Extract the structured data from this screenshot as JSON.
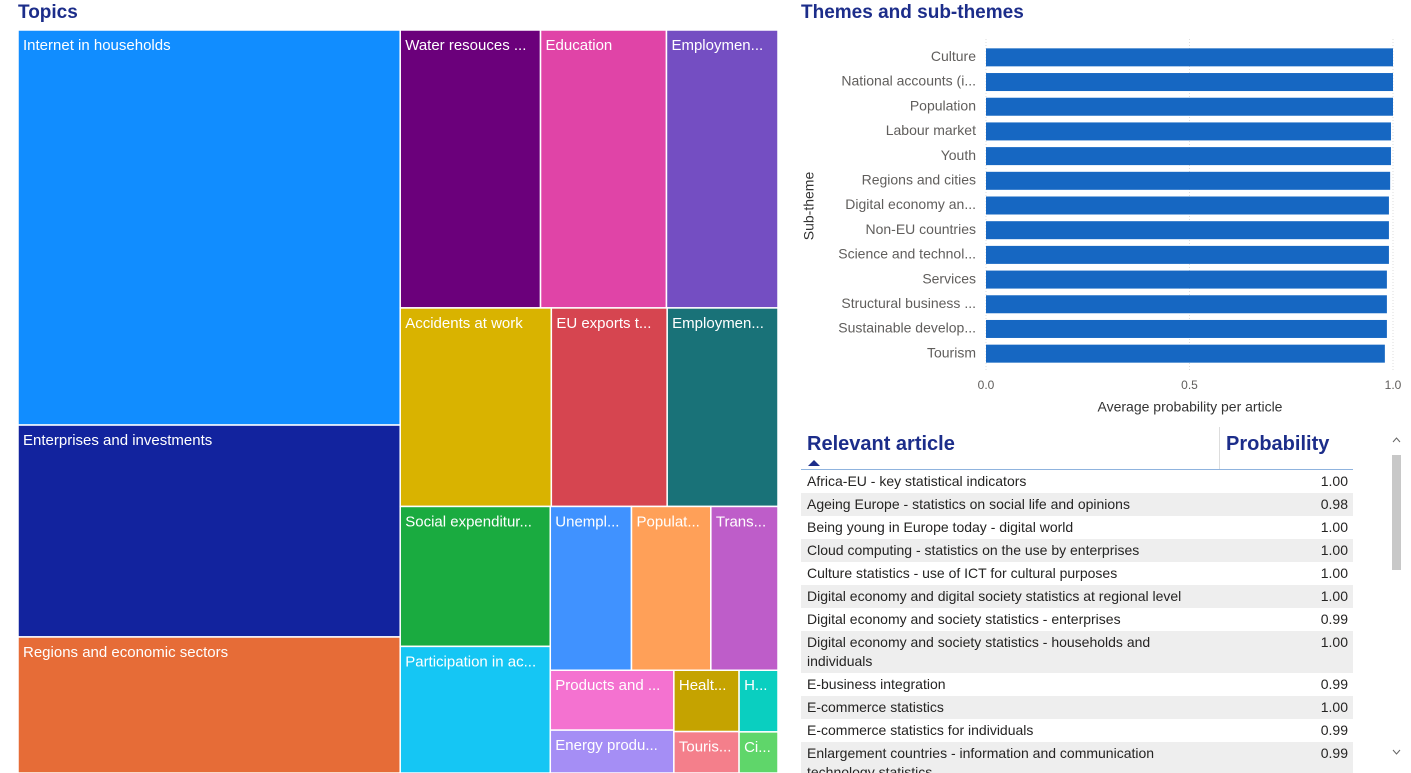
{
  "chart_data": [
    {
      "type": "treemap",
      "title": "Topics",
      "categories": [
        "Internet in households",
        "Enterprises and investments",
        "Regions and economic sectors",
        "Water resouces ...",
        "Education",
        "Employmen...",
        "Accidents at work",
        "EU exports t...",
        "Employmen...",
        "Social expenditur...",
        "Participation in ac...",
        "Unempl...",
        "Populat...",
        "Trans...",
        "Products and ...",
        "Energy produ...",
        "Healt...",
        "Touris...",
        "H...",
        "Ci..."
      ],
      "values": [
        151,
        81,
        52,
        39,
        35,
        31,
        30,
        23,
        22,
        21,
        19,
        13.3,
        13,
        11,
        7.4,
        5.3,
        4,
        2.7,
        2.4,
        1.6
      ],
      "colors": [
        "#118DFF",
        "#12239E",
        "#E66C37",
        "#6B007B",
        "#E044A7",
        "#744EC2",
        "#D9B300",
        "#D64550",
        "#197278",
        "#1AAB40",
        "#15C6F4",
        "#4092FF",
        "#FFA058",
        "#BE5DC9",
        "#F472D0",
        "#A58EF5",
        "#C5A300",
        "#F47F8B",
        "#0ACFC0",
        "#5FD66A"
      ]
    },
    {
      "type": "bar",
      "title": "Themes and sub-themes",
      "xlabel": "Average probability per article",
      "ylabel": "Sub-theme",
      "categories": [
        "Culture",
        "National accounts (i...",
        "Population",
        "Labour market",
        "Youth",
        "Regions and cities",
        "Digital economy an...",
        "Non-EU countries",
        "Science and technol...",
        "Services",
        "Structural business ...",
        "Sustainable develop...",
        "Tourism"
      ],
      "values": [
        1.0,
        1.0,
        1.0,
        0.995,
        0.995,
        0.993,
        0.99,
        0.99,
        0.99,
        0.985,
        0.985,
        0.985,
        0.98
      ],
      "color": "#1667C2",
      "xlim": [
        0,
        1
      ],
      "xticks": [
        {
          "value": 0,
          "label": "0.0"
        },
        0.5,
        {
          "value": 1,
          "label": "1.0"
        }
      ],
      "grid": true
    }
  ],
  "table": {
    "columns": [
      "Relevant article",
      "Probability"
    ],
    "rows": [
      [
        "Africa-EU - key statistical indicators",
        "1.00"
      ],
      [
        "Ageing Europe - statistics on social life and opinions",
        "0.98"
      ],
      [
        "Being young in Europe today - digital world",
        "1.00"
      ],
      [
        "Cloud computing - statistics on the use by enterprises",
        "1.00"
      ],
      [
        "Culture statistics - use of ICT for cultural purposes",
        "1.00"
      ],
      [
        "Digital economy and digital society statistics at regional level",
        "1.00"
      ],
      [
        "Digital economy and society statistics - enterprises",
        "0.99"
      ],
      [
        "Digital economy and society statistics - households and individuals",
        "1.00"
      ],
      [
        "E-business integration",
        "0.99"
      ],
      [
        "E-commerce statistics",
        "1.00"
      ],
      [
        "E-commerce statistics for individuals",
        "0.99"
      ],
      [
        "Enlargement countries - information and communication technology statistics",
        "0.99"
      ]
    ]
  }
}
